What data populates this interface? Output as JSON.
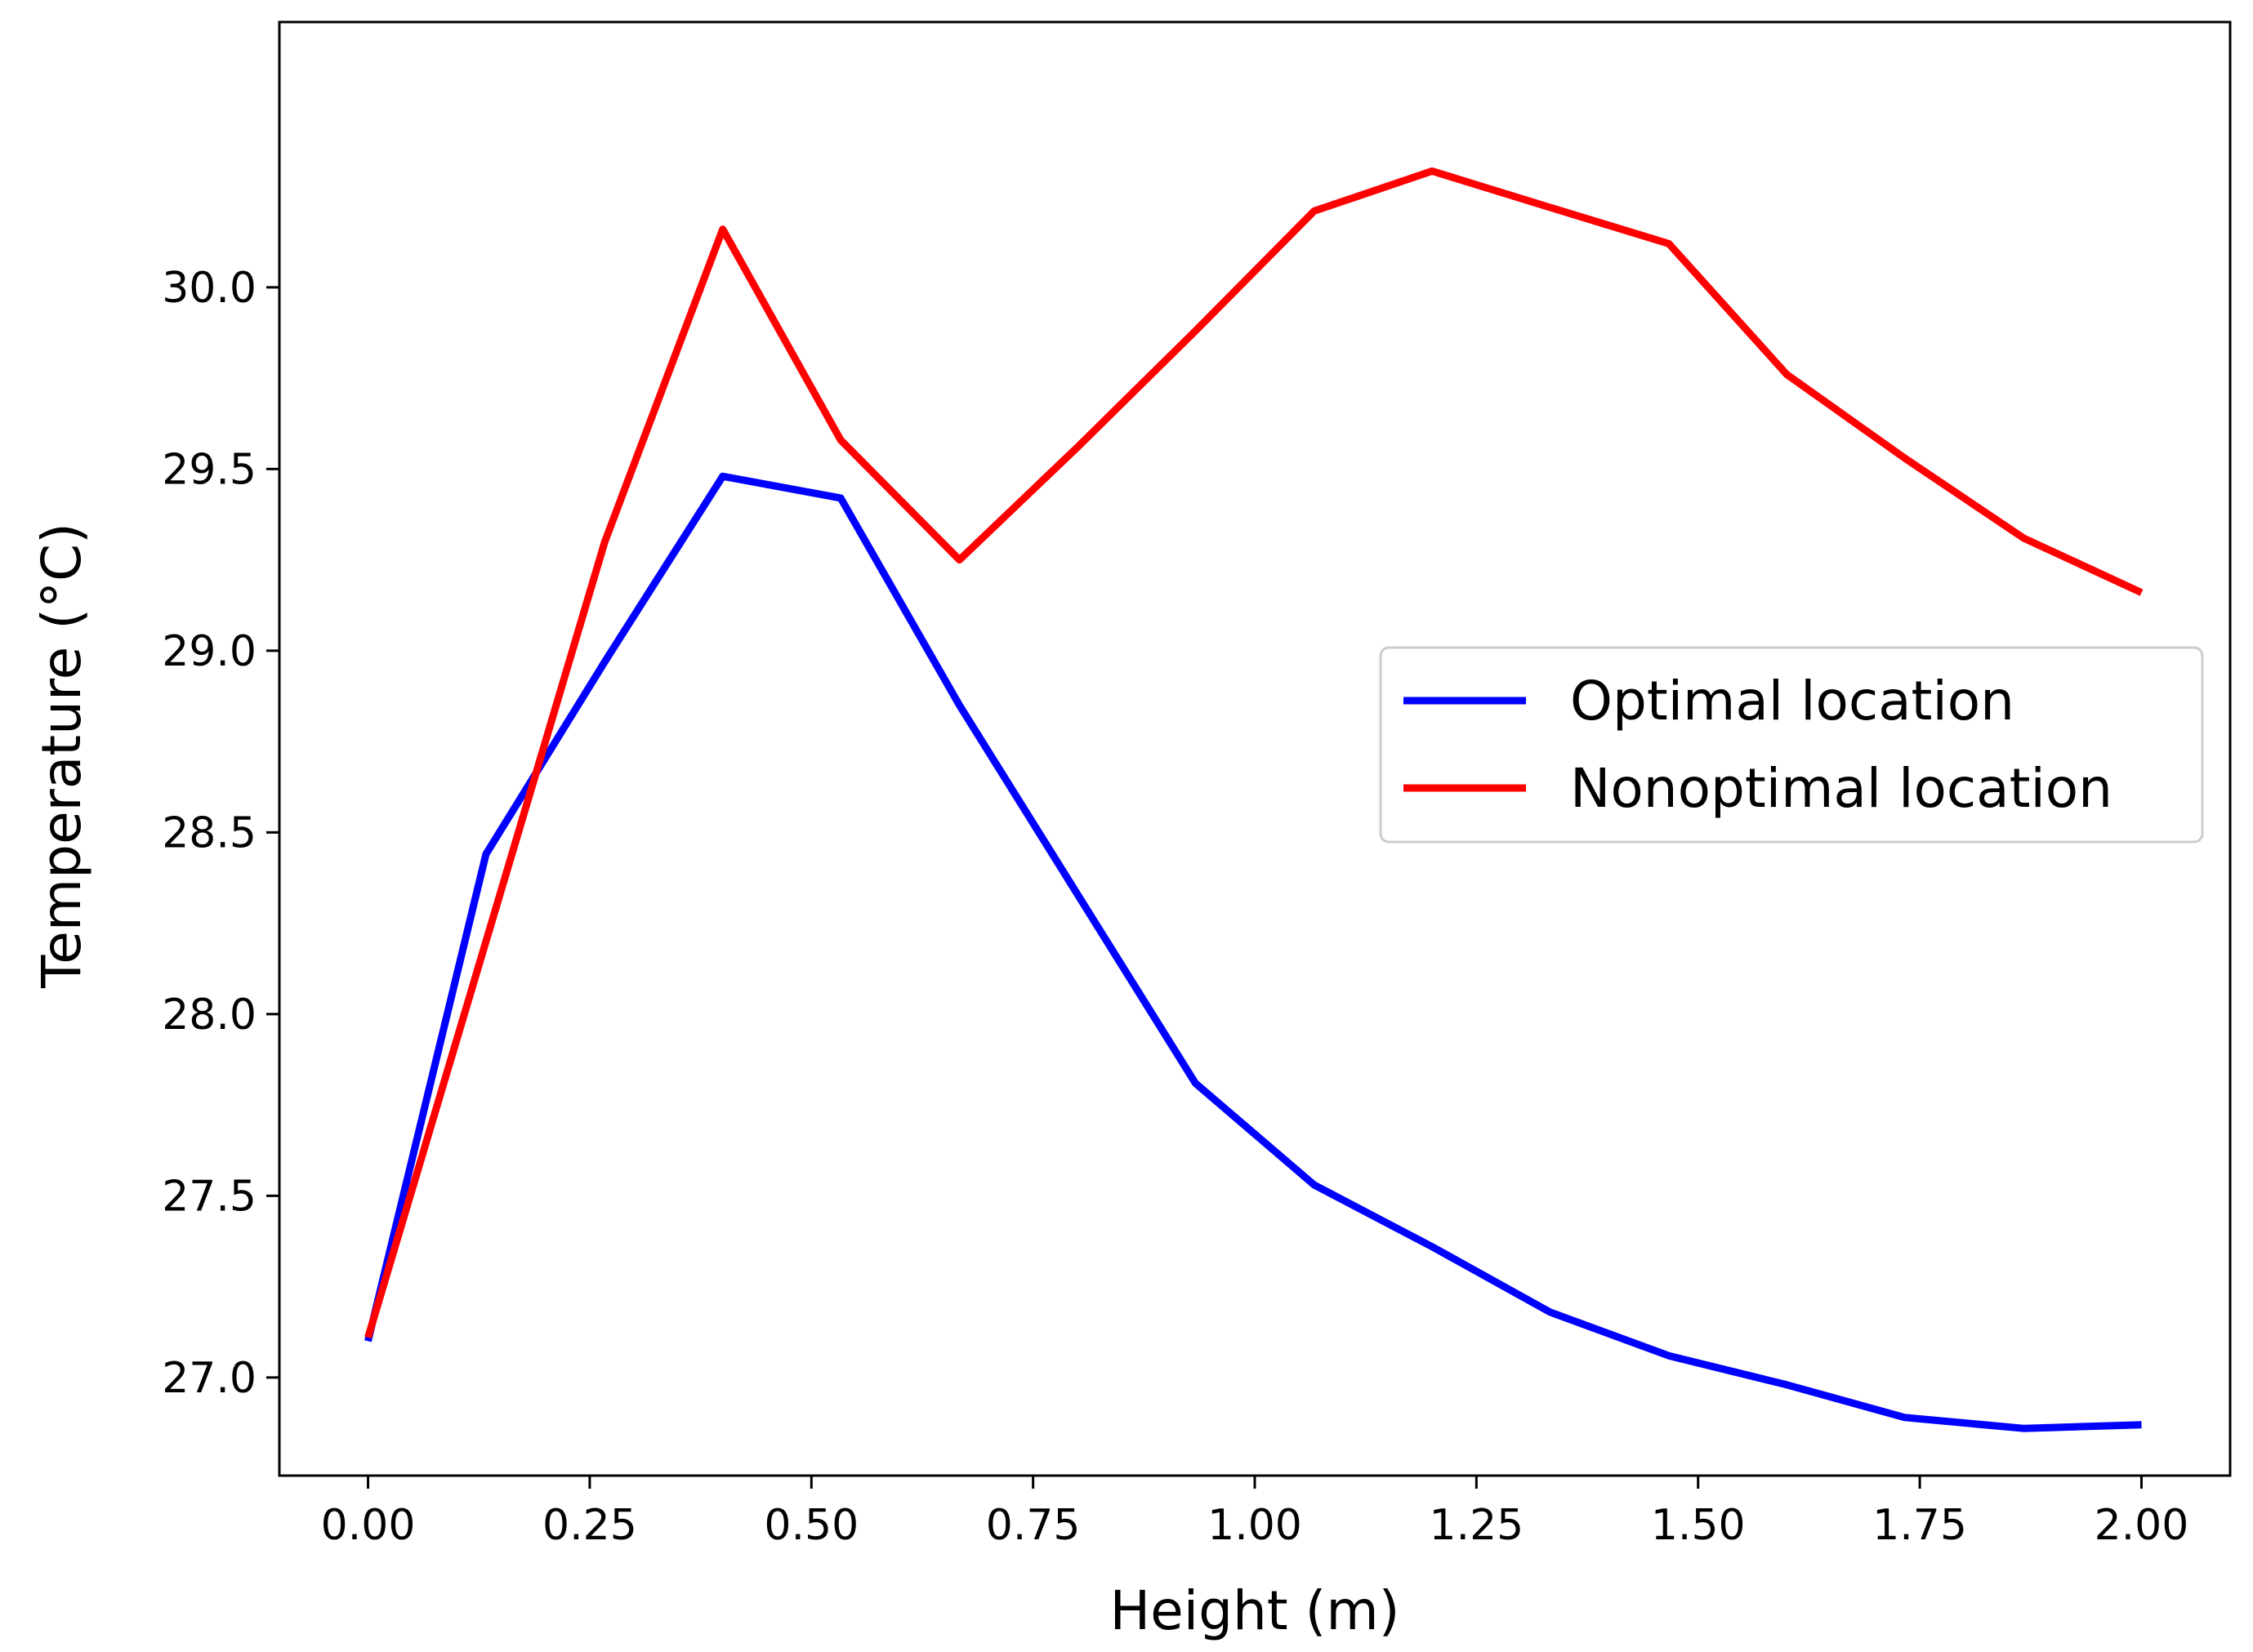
{
  "chart_data": {
    "type": "line",
    "title": "",
    "xlabel": "Height (m)",
    "ylabel": "Temperature (°C)",
    "xlim": [
      -0.1,
      2.1
    ],
    "ylim": [
      26.73,
      30.73
    ],
    "x_ticks": [
      0.0,
      0.25,
      0.5,
      0.75,
      1.0,
      1.25,
      1.5,
      1.75,
      2.0
    ],
    "x_tick_labels": [
      "0.00",
      "0.25",
      "0.50",
      "0.75",
      "1.00",
      "1.25",
      "1.50",
      "1.75",
      "2.00"
    ],
    "y_ticks": [
      27.0,
      27.5,
      28.0,
      28.5,
      29.0,
      29.5,
      30.0
    ],
    "y_tick_labels": [
      "27.0",
      "27.5",
      "28.0",
      "28.5",
      "29.0",
      "29.5",
      "30.0"
    ],
    "grid": false,
    "legend_position": "center-right",
    "x": [
      0.0,
      0.133,
      0.267,
      0.4,
      0.533,
      0.667,
      0.8,
      0.933,
      1.067,
      1.2,
      1.333,
      1.467,
      1.6,
      1.733,
      1.867,
      2.0
    ],
    "series": [
      {
        "name": "Optimal location",
        "color": "#0000ff",
        "values": [
          27.1,
          28.44,
          28.97,
          29.48,
          29.42,
          28.85,
          28.33,
          27.81,
          27.53,
          27.36,
          27.18,
          27.06,
          26.98,
          26.89,
          26.86,
          26.87
        ]
      },
      {
        "name": "Nonoptimal location",
        "color": "#ff0000",
        "values": [
          27.11,
          28.2,
          29.3,
          30.16,
          29.58,
          29.25,
          29.56,
          29.88,
          30.21,
          30.32,
          30.22,
          30.12,
          29.76,
          29.53,
          29.31,
          29.16
        ]
      }
    ]
  }
}
